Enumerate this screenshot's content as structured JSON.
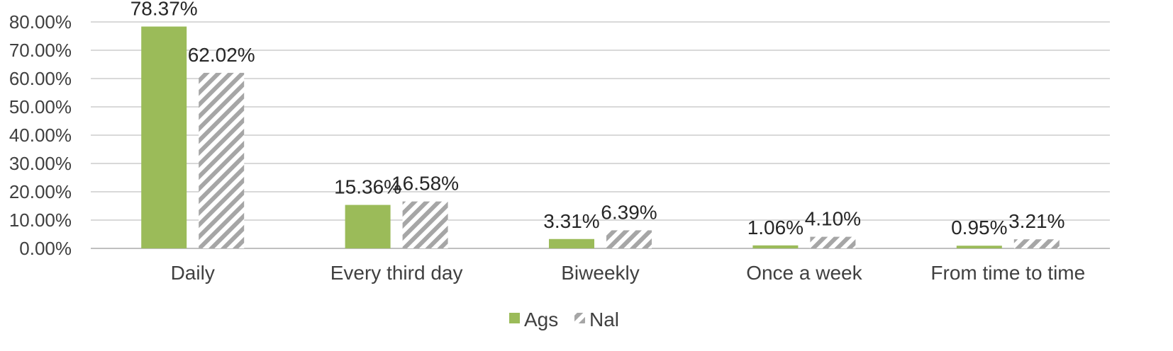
{
  "chart_data": {
    "type": "bar",
    "categories": [
      "Daily",
      "Every third day",
      "Biweekly",
      "Once a week",
      "From time to time"
    ],
    "series": [
      {
        "name": "Ags",
        "values": [
          78.37,
          15.36,
          3.31,
          1.06,
          0.95
        ],
        "color": "#9bbb59",
        "pattern": "solid"
      },
      {
        "name": "Nal",
        "values": [
          62.02,
          16.58,
          6.39,
          4.1,
          3.21
        ],
        "color": "#a6a6a6",
        "pattern": "diagonal-hatch"
      }
    ],
    "value_labels": [
      [
        "78.37%",
        "15.36%",
        "3.31%",
        "1.06%",
        "0.95%"
      ],
      [
        "62.02%",
        "16.58%",
        "6.39%",
        "4.10%",
        "3.21%"
      ]
    ],
    "y_ticks": [
      "0.00%",
      "10.00%",
      "20.00%",
      "30.00%",
      "40.00%",
      "50.00%",
      "60.00%",
      "70.00%",
      "80.00%"
    ],
    "ylim": [
      0,
      80
    ],
    "grid": true,
    "legend_position": "bottom",
    "title": "",
    "xlabel": "",
    "ylabel": ""
  }
}
